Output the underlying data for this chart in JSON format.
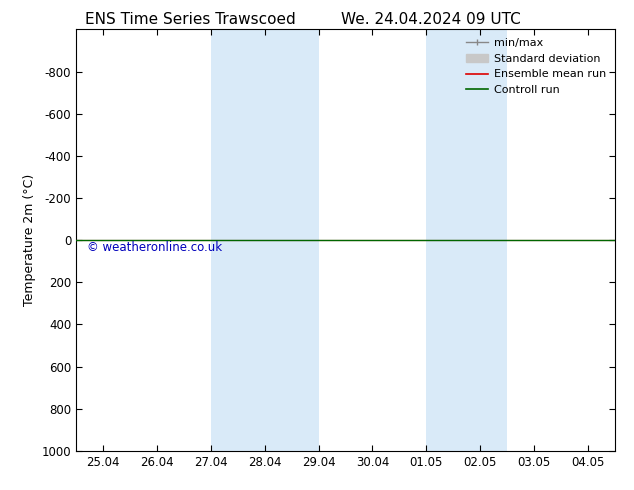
{
  "title_left": "ENS Time Series Trawscoed",
  "title_right": "We. 24.04.2024 09 UTC",
  "ylabel": "Temperature 2m (°C)",
  "watermark": "© weatheronline.co.uk",
  "ylim_bottom": 1000,
  "ylim_top": -1000,
  "yticks": [
    -800,
    -600,
    -400,
    -200,
    0,
    200,
    400,
    600,
    800,
    1000
  ],
  "xtick_labels": [
    "25.04",
    "26.04",
    "27.04",
    "28.04",
    "29.04",
    "30.04",
    "01.05",
    "02.05",
    "03.05",
    "04.05"
  ],
  "xtick_positions": [
    0,
    1,
    2,
    3,
    4,
    5,
    6,
    7,
    8,
    9
  ],
  "blue_bands": [
    [
      2.0,
      2.5
    ],
    [
      2.5,
      4.0
    ],
    [
      6.0,
      6.5
    ],
    [
      6.5,
      7.5
    ]
  ],
  "control_run_y": 0,
  "ensemble_mean_y": 0,
  "bg_color": "#ffffff",
  "plot_bg_color": "#ffffff",
  "blue_band_color": "#d9eaf8",
  "legend_minmax_color": "#888888",
  "legend_std_color": "#c8c8c8",
  "legend_ens_color": "#dd0000",
  "legend_ctrl_color": "#006600",
  "figsize": [
    6.34,
    4.9
  ],
  "dpi": 100
}
